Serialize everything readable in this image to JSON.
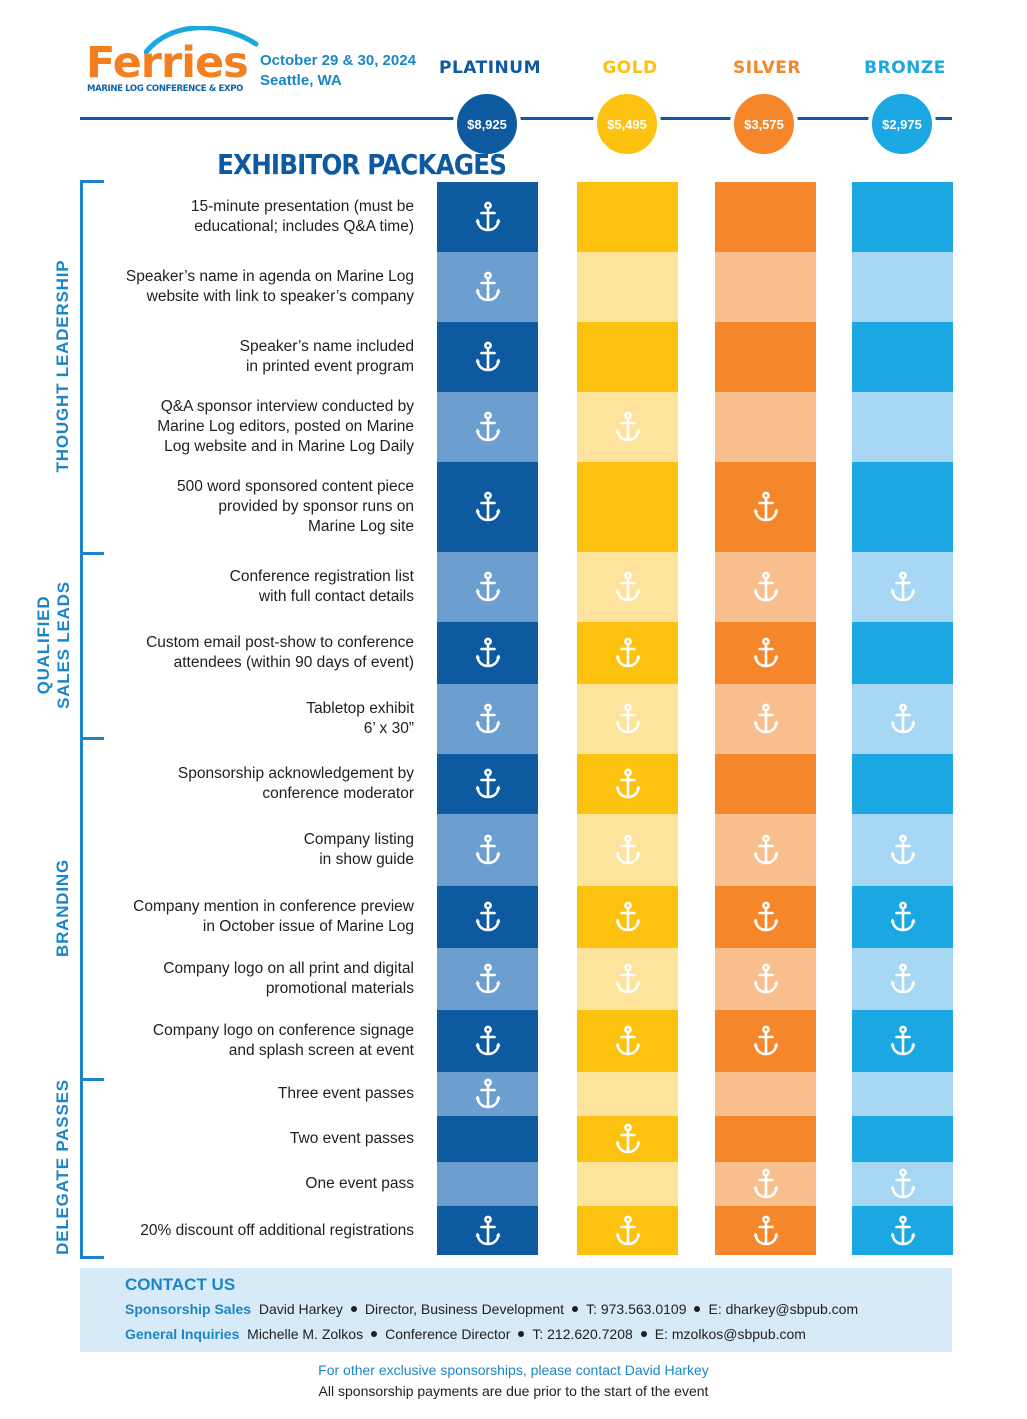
{
  "header": {
    "logo_word": "Ferries",
    "logo_tagline": "MARINE LOG CONFERENCE & EXPO",
    "event_dates": "October 29 & 30, 2024",
    "event_location": "Seattle, WA"
  },
  "tiers": [
    {
      "name": "PLATINUM",
      "price": "$8,925",
      "color": "#0d5aa1",
      "cell_dark": "#0d5aa1",
      "cell_light": "#6c9fd0",
      "name_color": "#0d5aa1"
    },
    {
      "name": "GOLD",
      "price": "$5,495",
      "color": "#fdc20f",
      "cell_dark": "#fdc20f",
      "cell_light": "#fde39c",
      "name_color": "#fdc20f"
    },
    {
      "name": "SILVER",
      "price": "$3,575",
      "color": "#f5862a",
      "cell_dark": "#f5862a",
      "cell_light": "#f9be8e",
      "name_color": "#f5862a"
    },
    {
      "name": "BRONZE",
      "price": "$2,975",
      "color": "#1aa7e2",
      "cell_dark": "#1aa7e2",
      "cell_light": "#a7d7f3",
      "name_color": "#1aa7e2"
    }
  ],
  "title": "EXHIBITOR PACKAGES",
  "categories": [
    {
      "name": "THOUGHT LEADERSHIP",
      "lines": [
        "THOUGHT LEADERSHIP"
      ],
      "rows": [
        0,
        4
      ]
    },
    {
      "name": "QUALIFIED SALES LEADS",
      "lines": [
        "QUALIFIED",
        "SALES LEADS"
      ],
      "rows": [
        5,
        7
      ]
    },
    {
      "name": "BRANDING",
      "lines": [
        "BRANDING"
      ],
      "rows": [
        8,
        12
      ]
    },
    {
      "name": "DELEGATE PASSES",
      "lines": [
        "DELEGATE PASSES"
      ],
      "rows": [
        13,
        16
      ]
    }
  ],
  "features": [
    {
      "lines": [
        "15-minute presentation (must be",
        "educational; includes Q&A time)"
      ],
      "included": [
        true,
        false,
        false,
        false
      ]
    },
    {
      "lines": [
        "Speaker’s name in agenda on Marine Log",
        "website with link to speaker’s company"
      ],
      "included": [
        true,
        false,
        false,
        false
      ]
    },
    {
      "lines": [
        "Speaker’s name included",
        "in printed event program"
      ],
      "included": [
        true,
        false,
        false,
        false
      ]
    },
    {
      "lines": [
        "Q&A sponsor interview conducted by",
        "Marine Log editors, posted on Marine",
        "Log website and in Marine Log Daily"
      ],
      "included": [
        true,
        true,
        false,
        false
      ]
    },
    {
      "lines": [
        "500 word sponsored content piece",
        "provided by sponsor runs on",
        "Marine Log site"
      ],
      "included": [
        true,
        false,
        true,
        false
      ]
    },
    {
      "lines": [
        "Conference registration list",
        "with full contact details"
      ],
      "included": [
        true,
        true,
        true,
        true
      ]
    },
    {
      "lines": [
        "Custom email post-show to conference",
        "attendees (within 90 days of event)"
      ],
      "included": [
        true,
        true,
        true,
        false
      ]
    },
    {
      "lines": [
        "Tabletop exhibit",
        "6’ x 30”"
      ],
      "included": [
        true,
        true,
        true,
        true
      ]
    },
    {
      "lines": [
        "Sponsorship acknowledgement by",
        "conference moderator"
      ],
      "included": [
        true,
        true,
        false,
        false
      ]
    },
    {
      "lines": [
        "Company listing",
        "in show guide"
      ],
      "included": [
        true,
        true,
        true,
        true
      ]
    },
    {
      "lines": [
        "Company mention in conference preview",
        "in October issue of Marine Log"
      ],
      "included": [
        true,
        true,
        true,
        true
      ]
    },
    {
      "lines": [
        "Company logo on all print and digital",
        "promotional materials"
      ],
      "included": [
        true,
        true,
        true,
        true
      ]
    },
    {
      "lines": [
        "Company logo on conference signage",
        "and splash screen at event"
      ],
      "included": [
        true,
        true,
        true,
        true
      ]
    },
    {
      "lines": [
        "Three event passes"
      ],
      "included": [
        true,
        false,
        false,
        false
      ]
    },
    {
      "lines": [
        "Two event passes"
      ],
      "included": [
        false,
        true,
        false,
        false
      ]
    },
    {
      "lines": [
        "One event pass"
      ],
      "included": [
        false,
        false,
        true,
        true
      ]
    },
    {
      "lines": [
        "20% discount off additional registrations"
      ],
      "included": [
        true,
        true,
        true,
        true
      ]
    }
  ],
  "contact": {
    "title": "CONTACT US",
    "sales": {
      "label": "Sponsorship Sales",
      "name": "David Harkey",
      "role": "Director, Business Development",
      "phone": "T: 973.563.0109",
      "email": "E: dharkey@sbpub.com"
    },
    "general": {
      "label": "General Inquiries",
      "name": "Michelle M. Zolkos",
      "role": "Conference Director",
      "phone": "T: 212.620.7208",
      "email": "E: mzolkos@sbpub.com"
    }
  },
  "footnotes": {
    "line1": "For other exclusive sponsorships, please contact David Harkey",
    "line2": "All sponsorship payments are due prior to the start of the event"
  },
  "icons": {
    "feature_included": "anchor-icon"
  }
}
